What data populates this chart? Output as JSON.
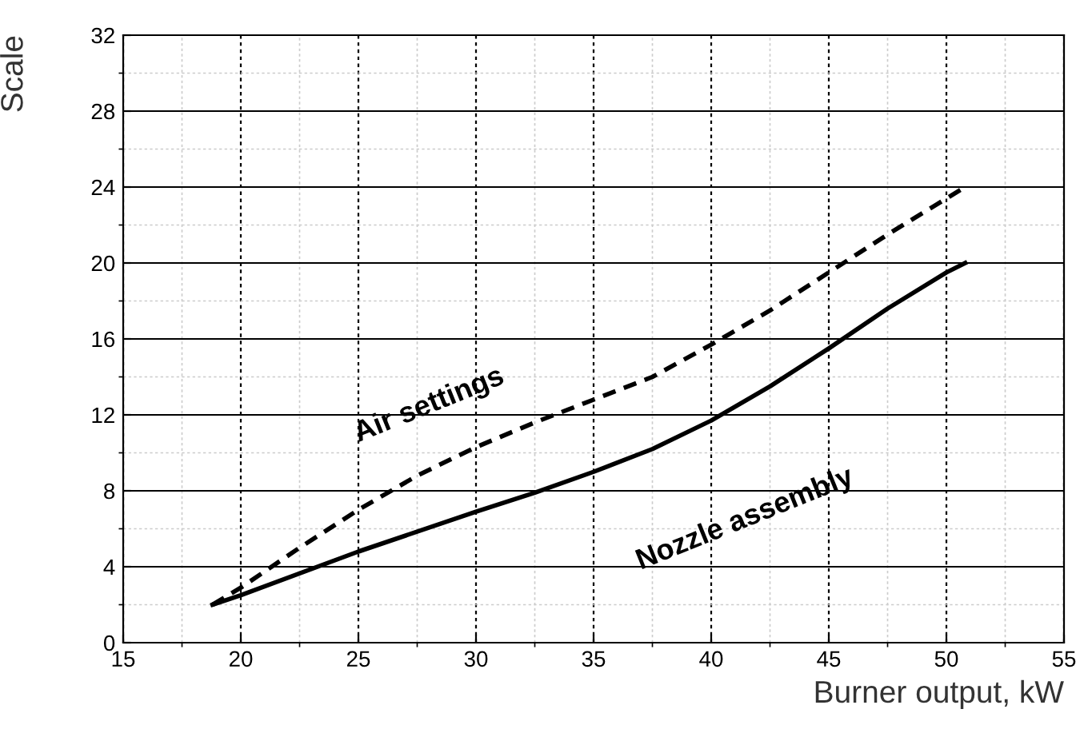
{
  "chart_data": {
    "type": "line",
    "xlabel": "Burner output, kW",
    "ylabel": "Scale",
    "xlim": [
      15,
      55
    ],
    "xticks": [
      15,
      20,
      25,
      30,
      35,
      40,
      45,
      50,
      55
    ],
    "ylim": [
      0,
      32
    ],
    "yticks": [
      0,
      4,
      8,
      12,
      16,
      20,
      24,
      28,
      32
    ],
    "grid": true,
    "marker": "none",
    "series": [
      {
        "name": "Air settings",
        "color": "#000000",
        "line_style": "dashed",
        "x": [
          18.8,
          20,
          22.5,
          25,
          27.5,
          30,
          32.5,
          35,
          37.5,
          40,
          42.5,
          45,
          47.5,
          50.8
        ],
        "values": [
          2,
          2.9,
          5,
          7,
          8.8,
          10.3,
          11.6,
          12.8,
          14,
          15.7,
          17.5,
          19.5,
          21.5,
          24
        ]
      },
      {
        "name": "Nozzle assembly",
        "color": "#000000",
        "line_style": "solid",
        "x": [
          18.8,
          20,
          25,
          30,
          32.5,
          35,
          37.5,
          40,
          42.5,
          45,
          47.5,
          50,
          50.8
        ],
        "values": [
          2,
          2.5,
          4.8,
          6.9,
          7.9,
          9,
          10.2,
          11.7,
          13.5,
          15.5,
          17.6,
          19.5,
          20
        ]
      }
    ]
  }
}
